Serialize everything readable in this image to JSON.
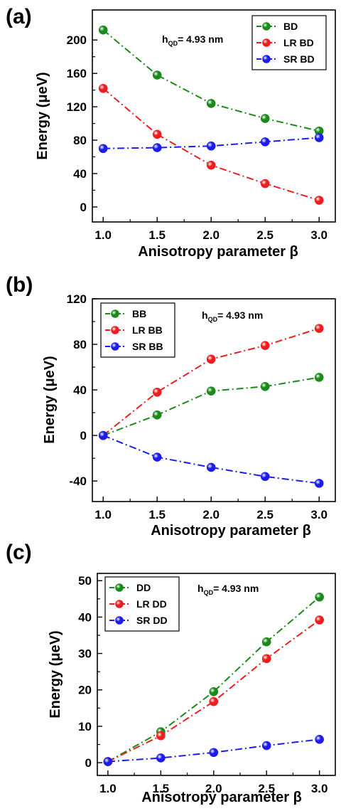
{
  "chart_data": [
    {
      "type": "line",
      "panel_label": "(a)",
      "annotation": {
        "base": "h",
        "sub": "QD",
        "rest": "= 4.93 nm"
      },
      "xlabel": "Anisotropy parameter β",
      "ylabel": "Energy (μeV)",
      "x": [
        1.0,
        1.5,
        2.0,
        2.5,
        3.0
      ],
      "xlim": [
        0.9,
        3.15
      ],
      "ylim": [
        -18,
        236
      ],
      "xticks": [
        "1.0",
        "1.5",
        "2.0",
        "2.5",
        "3.0"
      ],
      "yticks": [
        0,
        40,
        80,
        120,
        160,
        200
      ],
      "ytick_labels": [
        "0",
        "40",
        "80",
        "120",
        "160",
        "200"
      ],
      "legend_position": "top-right",
      "series": [
        {
          "name": "BD",
          "color": "#1a8a1a",
          "values": [
            212,
            158,
            124,
            106,
            91
          ]
        },
        {
          "name": "LR BD",
          "color": "#ee1c1c",
          "values": [
            142,
            87,
            50,
            28,
            8
          ]
        },
        {
          "name": "SR BD",
          "color": "#1c1cee",
          "values": [
            70,
            71,
            73,
            78,
            83
          ]
        }
      ]
    },
    {
      "type": "line",
      "panel_label": "(b)",
      "annotation": {
        "base": "h",
        "sub": "QD",
        "rest": "= 4.93 nm"
      },
      "xlabel": "Anisotropy parameter β",
      "ylabel": "Energy (μeV)",
      "x": [
        1.0,
        1.5,
        2.0,
        2.5,
        3.0
      ],
      "xlim": [
        0.9,
        3.15
      ],
      "ylim": [
        -58,
        120
      ],
      "xticks": [
        "1.0",
        "1.5",
        "2.0",
        "2.5",
        "3.0"
      ],
      "yticks": [
        -40,
        0,
        40,
        80,
        120
      ],
      "ytick_labels": [
        "-40",
        "0",
        "40",
        "80",
        "120"
      ],
      "legend_position": "top-left",
      "series": [
        {
          "name": "BB",
          "color": "#1a8a1a",
          "values": [
            0,
            18,
            39,
            43,
            51
          ]
        },
        {
          "name": "LR BB",
          "color": "#ee1c1c",
          "values": [
            0,
            38,
            67,
            79,
            94
          ]
        },
        {
          "name": "SR BB",
          "color": "#1c1cee",
          "values": [
            0,
            -19,
            -28,
            -36,
            -42
          ]
        }
      ]
    },
    {
      "type": "line",
      "panel_label": "(c)",
      "annotation": {
        "base": "h",
        "sub": "QD",
        "rest": "= 4.93 nm"
      },
      "xlabel": "Anisotropy parameter β",
      "ylabel": "Energy (μeV)",
      "x": [
        1.0,
        1.5,
        2.0,
        2.5,
        3.0
      ],
      "xlim": [
        0.9,
        3.15
      ],
      "ylim": [
        -3.5,
        52
      ],
      "xticks": [
        "1.0",
        "1.5",
        "2.0",
        "2.5",
        "3.0"
      ],
      "yticks": [
        0,
        10,
        20,
        30,
        40,
        50
      ],
      "ytick_labels": [
        "0",
        "10",
        "20",
        "30",
        "40",
        "50"
      ],
      "legend_position": "top-left",
      "series": [
        {
          "name": "DD",
          "color": "#1a8a1a",
          "values": [
            0.3,
            8.5,
            19.5,
            33.2,
            45.5
          ]
        },
        {
          "name": "LR DD",
          "color": "#ee1c1c",
          "values": [
            0.3,
            7.4,
            16.8,
            28.6,
            39.2
          ]
        },
        {
          "name": "SR DD",
          "color": "#1c1cee",
          "values": [
            0.3,
            1.3,
            2.8,
            4.7,
            6.4
          ]
        }
      ]
    }
  ]
}
